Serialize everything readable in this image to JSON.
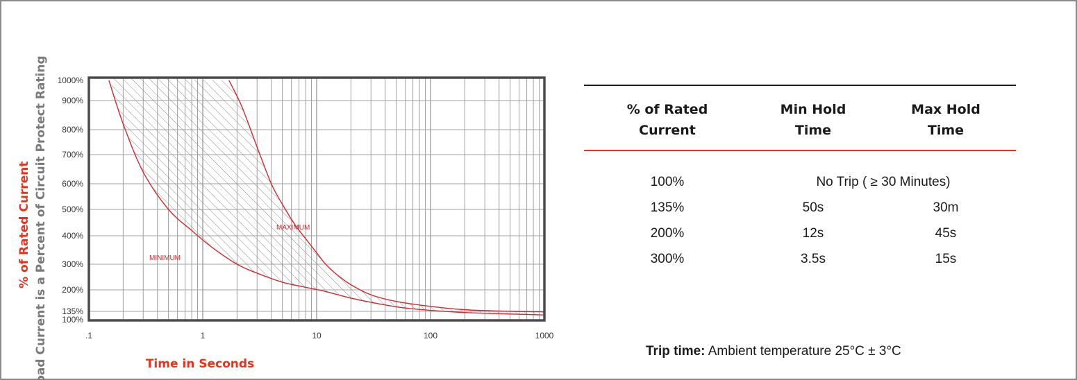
{
  "chart_data": {
    "type": "line",
    "xscale": "log",
    "xlim": [
      0.1,
      1000
    ],
    "x_ticks": [
      ".1",
      "1",
      "10",
      "100",
      "1000"
    ],
    "y_ticks": [
      "1000%",
      "900%",
      "800%",
      "700%",
      "600%",
      "500%",
      "400%",
      "300%",
      "200%",
      "135%",
      "100%"
    ],
    "ylim": [
      100,
      1000
    ],
    "ylabel_main": "% of Rated Current",
    "ylabel_sub": "Load Current is a Percent of Circuit Protect Rating",
    "xlabel": "Time in Seconds",
    "grid": true,
    "band_between_series": "hatched",
    "series": [
      {
        "name": "MINIMUM",
        "color": "#d8262c",
        "x": [
          0.15,
          0.2,
          0.3,
          0.5,
          0.8,
          1.2,
          2,
          3,
          5,
          8,
          12,
          20,
          35,
          60,
          100,
          200,
          400,
          700,
          1000
        ],
        "y": [
          1000,
          820,
          640,
          500,
          420,
          360,
          300,
          265,
          230,
          210,
          195,
          175,
          158,
          145,
          138,
          130,
          125,
          122,
          120
        ]
      },
      {
        "name": "MAXIMUM",
        "color": "#d8262c",
        "x": [
          1.7,
          2.2,
          3,
          4,
          5,
          6.5,
          8,
          10,
          12,
          15,
          20,
          30,
          50,
          100,
          200,
          500,
          1000
        ],
        "y": [
          1000,
          880,
          730,
          600,
          520,
          440,
          390,
          340,
          300,
          260,
          220,
          185,
          165,
          150,
          140,
          135,
          133
        ]
      }
    ]
  },
  "table": {
    "headers": [
      [
        "% of Rated",
        "Current"
      ],
      [
        "Min Hold",
        "Time"
      ],
      [
        "Max Hold",
        "Time"
      ]
    ],
    "rows": [
      {
        "current": "100%",
        "merged": "No Trip ( ≥ 30 Minutes)"
      },
      {
        "current": "135%",
        "min": "50s",
        "max": "30m"
      },
      {
        "current": "200%",
        "min": "12s",
        "max": "45s"
      },
      {
        "current": "300%",
        "min": "3.5s",
        "max": "15s"
      }
    ]
  },
  "note": {
    "label": "Trip time:",
    "text": " Ambient temperature 25°C ± 3°C"
  },
  "colors": {
    "accent": "#e8341e",
    "curve": "#d8262c",
    "axis_frame": "#4a4a4a",
    "grid": "#a0a0a0"
  }
}
